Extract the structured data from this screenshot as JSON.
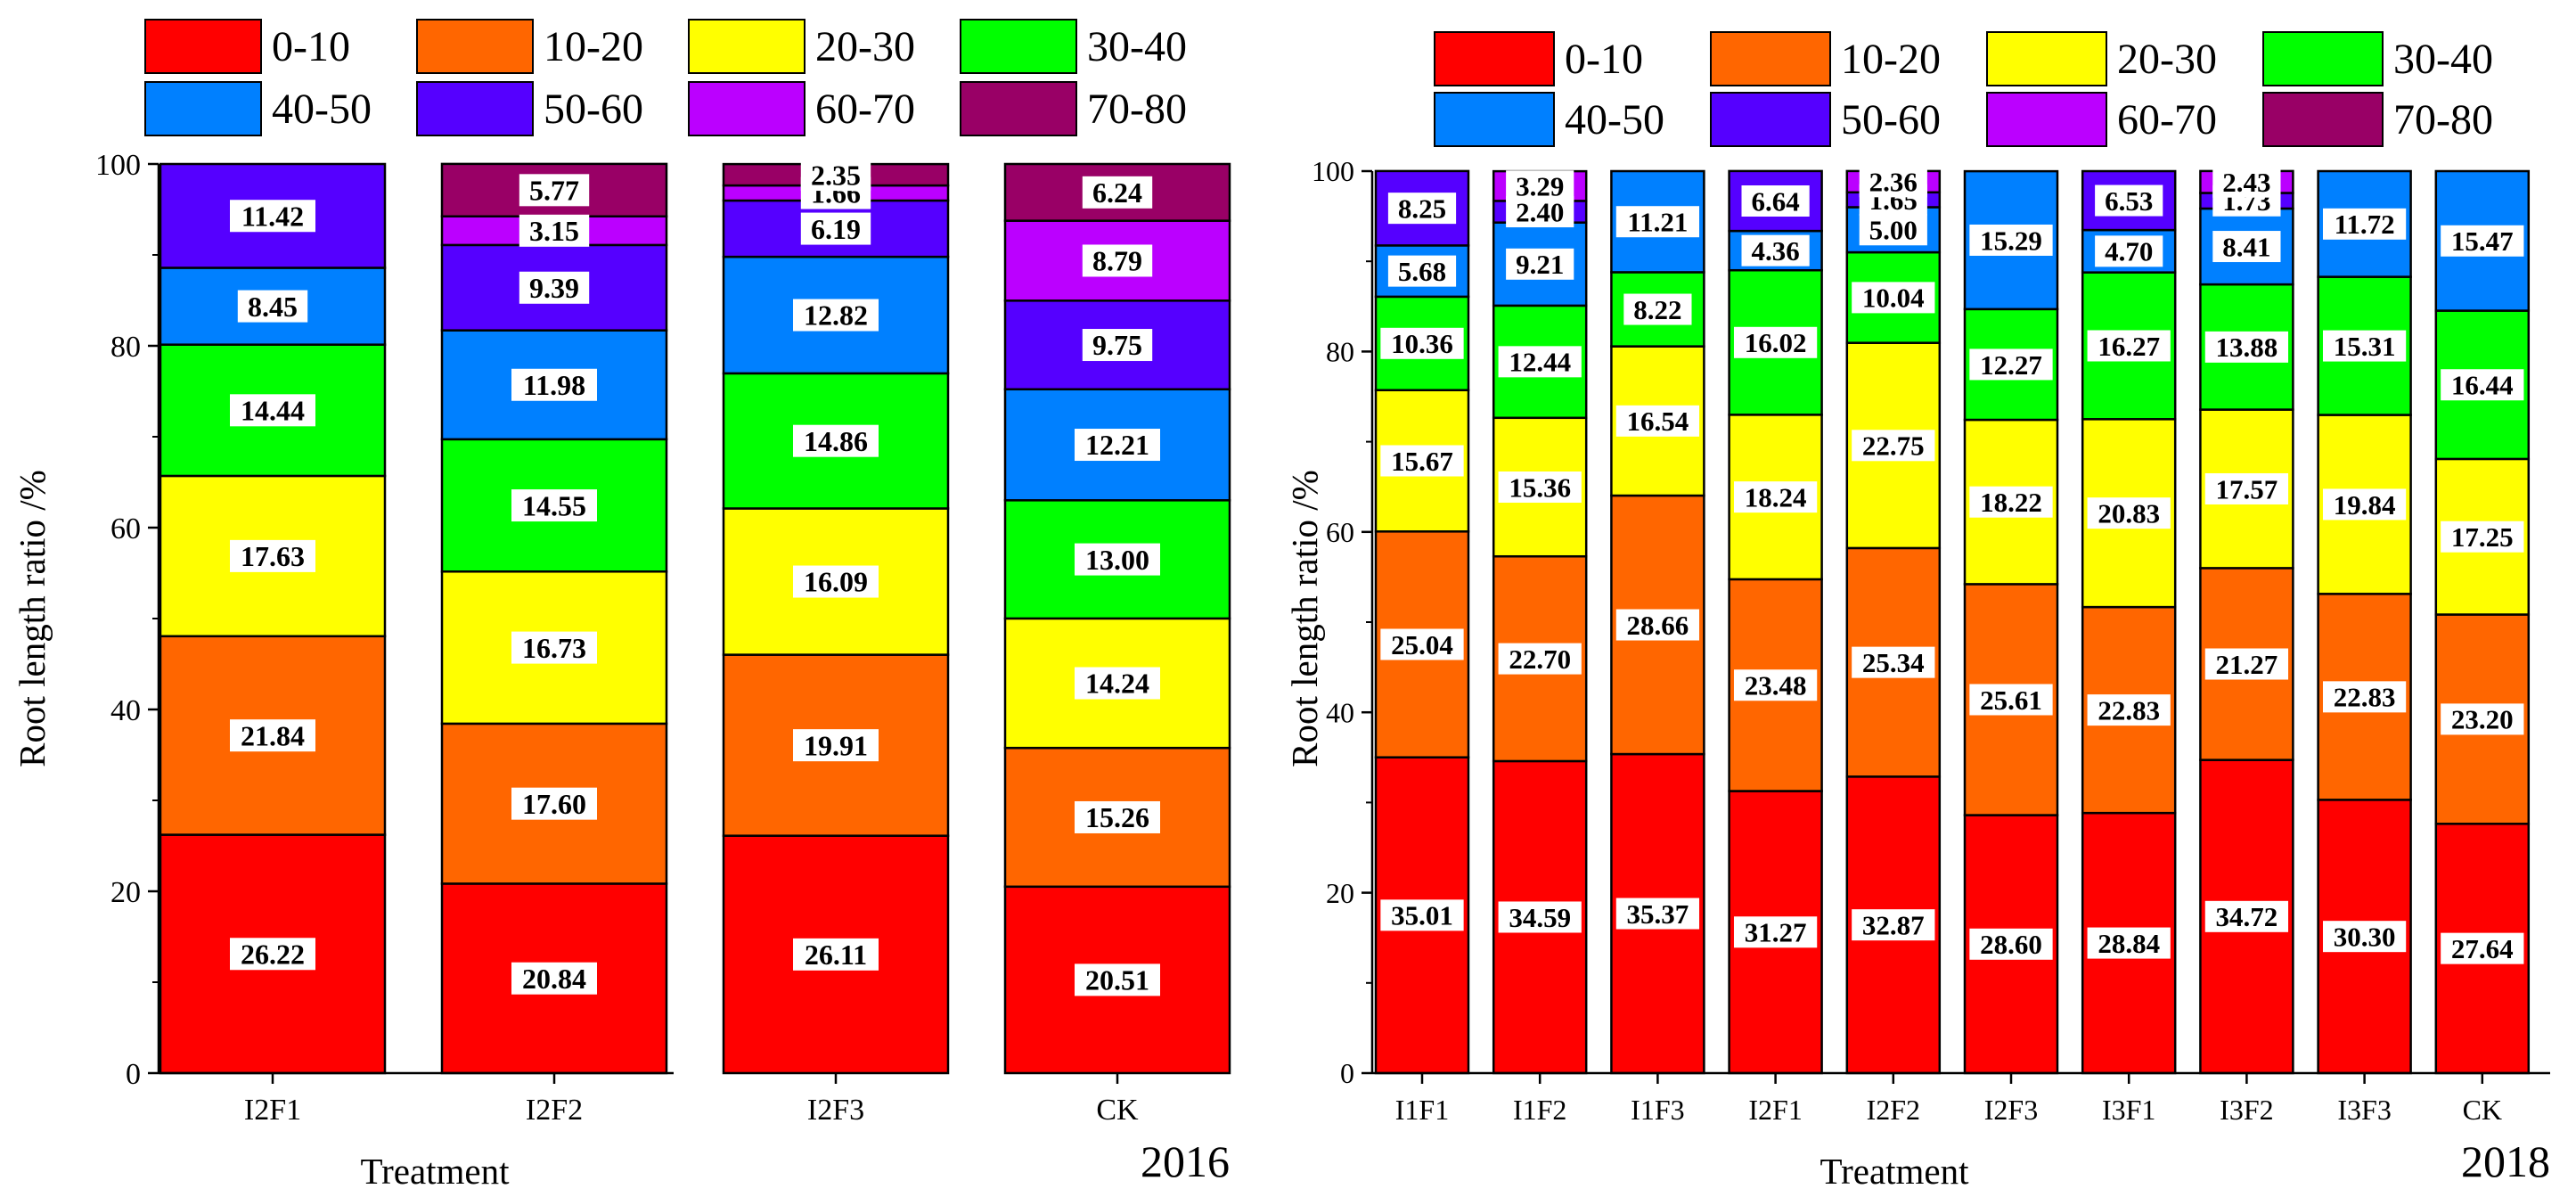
{
  "colors": {
    "series": [
      "#ff0000",
      "#ff6600",
      "#ffff00",
      "#00ff00",
      "#0080ff",
      "#5500ff",
      "#bb00ff",
      "#990066"
    ],
    "outline": "#000000",
    "label_bg": "#ffffff",
    "text": "#000000"
  },
  "chart_data": [
    {
      "type": "bar",
      "stacked": true,
      "year": "2016",
      "title": "",
      "xlabel": "Treatment",
      "ylabel": "Root length ratio /%",
      "ylim": [
        0,
        100
      ],
      "yticks": [
        "0",
        "20",
        "40",
        "60",
        "80",
        "100"
      ],
      "legend": [
        "0-10",
        "10-20",
        "20-30",
        "30-40",
        "40-50",
        "50-60",
        "60-70",
        "70-80"
      ],
      "legend_placement": "top",
      "categories": [
        "I2F1",
        "I2F2",
        "I2F3",
        "CK"
      ],
      "series": [
        {
          "name": "0-10",
          "values": [
            26.22,
            20.84,
            26.11,
            20.51
          ],
          "labels": [
            "26.22",
            "20.84",
            "26.11",
            "20.51"
          ]
        },
        {
          "name": "10-20",
          "values": [
            21.84,
            17.6,
            19.91,
            15.26
          ],
          "labels": [
            "21.84",
            "17.60",
            "19.91",
            "15.26"
          ]
        },
        {
          "name": "20-30",
          "values": [
            17.63,
            16.73,
            16.09,
            14.24
          ],
          "labels": [
            "17.63",
            "16.73",
            "16.09",
            "14.24"
          ]
        },
        {
          "name": "30-40",
          "values": [
            14.44,
            14.55,
            14.86,
            13.0
          ],
          "labels": [
            "14.44",
            "14.55",
            "14.86",
            "13.00"
          ]
        },
        {
          "name": "40-50",
          "values": [
            8.45,
            11.98,
            12.82,
            12.21
          ],
          "labels": [
            "8.45",
            "11.98",
            "12.82",
            "12.21"
          ]
        },
        {
          "name": "50-60",
          "values": [
            11.42,
            9.39,
            6.19,
            9.75
          ],
          "labels": [
            "11.42",
            "9.39",
            "6.19",
            "9.75"
          ]
        },
        {
          "name": "60-70",
          "values": [
            0,
            3.15,
            1.66,
            8.79
          ],
          "labels": [
            "",
            "3.15",
            "1.66",
            "8.79"
          ]
        },
        {
          "name": "70-80",
          "values": [
            0,
            5.77,
            2.35,
            6.24
          ],
          "labels": [
            "",
            "5.77",
            "2.35",
            "6.24"
          ]
        }
      ]
    },
    {
      "type": "bar",
      "stacked": true,
      "year": "2018",
      "title": "",
      "xlabel": "Treatment",
      "ylabel": "Root length ratio /%",
      "ylim": [
        0,
        100
      ],
      "yticks": [
        "0",
        "20",
        "40",
        "60",
        "80",
        "100"
      ],
      "legend": [
        "0-10",
        "10-20",
        "20-30",
        "30-40",
        "40-50",
        "50-60",
        "60-70",
        "70-80"
      ],
      "legend_placement": "top",
      "categories": [
        "I1F1",
        "I1F2",
        "I1F3",
        "I2F1",
        "I2F2",
        "I2F3",
        "I3F1",
        "I3F2",
        "I3F3",
        "CK"
      ],
      "series": [
        {
          "name": "0-10",
          "values": [
            35.01,
            34.59,
            35.37,
            31.27,
            32.87,
            28.6,
            28.84,
            34.72,
            30.3,
            27.64
          ],
          "labels": [
            "35.01",
            "34.59",
            "35.37",
            "31.27",
            "32.87",
            "28.60",
            "28.84",
            "34.72",
            "30.30",
            "27.64"
          ]
        },
        {
          "name": "10-20",
          "values": [
            25.04,
            22.7,
            28.66,
            23.48,
            25.34,
            25.61,
            22.83,
            21.27,
            22.83,
            23.2
          ],
          "labels": [
            "25.04",
            "22.70",
            "28.66",
            "23.48",
            "25.34",
            "25.61",
            "22.83",
            "21.27",
            "22.83",
            "23.20"
          ]
        },
        {
          "name": "20-30",
          "values": [
            15.67,
            15.36,
            16.54,
            18.24,
            22.75,
            18.22,
            20.83,
            17.57,
            19.84,
            17.25
          ],
          "labels": [
            "15.67",
            "15.36",
            "16.54",
            "18.24",
            "22.75",
            "18.22",
            "20.83",
            "17.57",
            "19.84",
            "17.25"
          ]
        },
        {
          "name": "30-40",
          "values": [
            10.36,
            12.44,
            8.22,
            16.02,
            10.04,
            12.27,
            16.27,
            13.88,
            15.31,
            16.44
          ],
          "labels": [
            "10.36",
            "12.44",
            "8.22",
            "16.02",
            "10.04",
            "12.27",
            "16.27",
            "13.88",
            "15.31",
            "16.44"
          ]
        },
        {
          "name": "40-50",
          "values": [
            5.68,
            9.21,
            11.21,
            4.36,
            5.0,
            15.29,
            4.7,
            8.41,
            11.72,
            15.47
          ],
          "labels": [
            "5.68",
            "9.21",
            "11.21",
            "4.36",
            "5.00",
            "15.29",
            "4.70",
            "8.41",
            "11.72",
            "15.47"
          ]
        },
        {
          "name": "50-60",
          "values": [
            8.25,
            2.4,
            0,
            6.64,
            1.65,
            0,
            6.53,
            1.73,
            0,
            0
          ],
          "labels": [
            "8.25",
            "2.40",
            "",
            "6.64",
            "1.65",
            "",
            "6.53",
            "1.73",
            "",
            ""
          ]
        },
        {
          "name": "60-70",
          "values": [
            0,
            3.29,
            0,
            0,
            2.36,
            0,
            0,
            2.43,
            0,
            0
          ],
          "labels": [
            "",
            "3.29",
            "",
            "",
            "2.36",
            "",
            "",
            "2.43",
            "",
            ""
          ]
        },
        {
          "name": "70-80",
          "values": [
            0,
            0,
            0,
            0,
            0,
            0,
            0,
            0,
            0,
            0
          ],
          "labels": [
            "",
            "",
            "",
            "",
            "",
            "",
            "",
            "",
            "",
            ""
          ]
        }
      ]
    }
  ]
}
